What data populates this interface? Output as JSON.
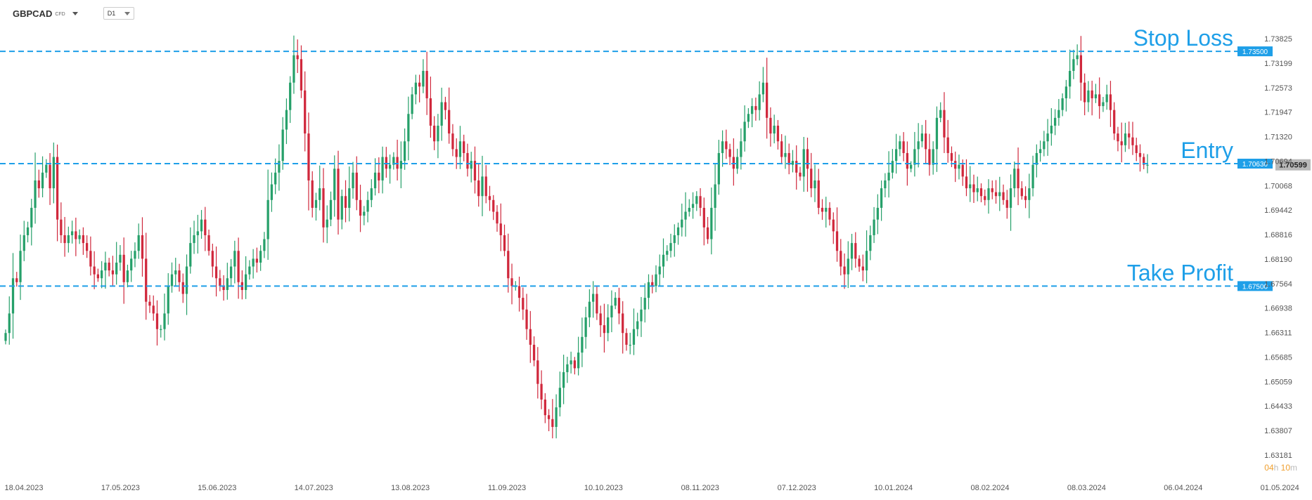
{
  "toolbar": {
    "symbol": "GBPCAD",
    "instrument_type": "CFD",
    "timeframe": "D1"
  },
  "countdown": {
    "hours": "04",
    "hours_unit": "h",
    "minutes": "10",
    "minutes_unit": "m"
  },
  "colors": {
    "bull": "#26a06a",
    "bear": "#d0283c",
    "level_line": "#1e9fe8",
    "label_bg": "#1e9fe8",
    "current_price_bg": "#b9b9b9",
    "countdown": "#f0a030"
  },
  "chart_data": {
    "type": "candlestick",
    "symbol": "GBPCAD",
    "timeframe": "D1",
    "y_ticks": [
      "1.73825",
      "1.73199",
      "1.72573",
      "1.71947",
      "1.71320",
      "1.70694",
      "1.70068",
      "1.69442",
      "1.68816",
      "1.68190",
      "1.67564",
      "1.66938",
      "1.66311",
      "1.65685",
      "1.65059",
      "1.64433",
      "1.63807",
      "1.63181"
    ],
    "ylim": [
      1.63181,
      1.73825
    ],
    "x_ticks": [
      "18.04.2023",
      "17.05.2023",
      "15.06.2023",
      "14.07.2023",
      "13.08.2023",
      "11.09.2023",
      "10.10.2023",
      "08.11.2023",
      "07.12.2023",
      "10.01.2024",
      "08.02.2024",
      "08.03.2024",
      "06.04.2024",
      "01.05.2024"
    ],
    "grid": false,
    "levels": [
      {
        "name": "Stop Loss",
        "price": 1.735,
        "label": "1.73500"
      },
      {
        "name": "Entry",
        "price": 1.7063,
        "label": "1.70630"
      },
      {
        "name": "Take Profit",
        "price": 1.675,
        "label": "1.67500"
      }
    ],
    "current_price": {
      "price": 1.70599,
      "label": "1.70599"
    },
    "series_close": [
      1.663,
      1.668,
      1.677,
      1.676,
      1.684,
      1.688,
      1.69,
      1.695,
      1.702,
      1.7,
      1.704,
      1.706,
      1.7,
      1.708,
      1.692,
      1.688,
      1.686,
      1.688,
      1.689,
      1.687,
      1.688,
      1.686,
      1.684,
      1.68,
      1.678,
      1.677,
      1.679,
      1.681,
      1.679,
      1.678,
      1.681,
      1.683,
      1.676,
      1.679,
      1.682,
      1.684,
      1.688,
      1.682,
      1.671,
      1.67,
      1.668,
      1.664,
      1.664,
      1.668,
      1.675,
      1.678,
      1.679,
      1.676,
      1.673,
      1.68,
      1.686,
      1.688,
      1.689,
      1.692,
      1.688,
      1.684,
      1.68,
      1.677,
      1.675,
      1.674,
      1.677,
      1.68,
      1.684,
      1.676,
      1.674,
      1.678,
      1.68,
      1.682,
      1.681,
      1.684,
      1.687,
      1.697,
      1.701,
      1.704,
      1.707,
      1.715,
      1.72,
      1.727,
      1.734,
      1.733,
      1.725,
      1.714,
      1.702,
      1.695,
      1.697,
      1.7,
      1.69,
      1.692,
      1.697,
      1.705,
      1.692,
      1.698,
      1.695,
      1.7,
      1.704,
      1.697,
      1.693,
      1.694,
      1.697,
      1.7,
      1.704,
      1.702,
      1.708,
      1.705,
      1.706,
      1.708,
      1.705,
      1.707,
      1.712,
      1.719,
      1.724,
      1.727,
      1.726,
      1.73,
      1.723,
      1.716,
      1.712,
      1.716,
      1.722,
      1.72,
      1.714,
      1.71,
      1.708,
      1.712,
      1.709,
      1.705,
      1.707,
      1.702,
      1.698,
      1.703,
      1.698,
      1.697,
      1.694,
      1.691,
      1.688,
      1.684,
      1.677,
      1.675,
      1.675,
      1.672,
      1.669,
      1.664,
      1.66,
      1.656,
      1.65,
      1.646,
      1.642,
      1.641,
      1.639,
      1.644,
      1.649,
      1.653,
      1.655,
      1.656,
      1.654,
      1.658,
      1.662,
      1.667,
      1.671,
      1.673,
      1.668,
      1.665,
      1.663,
      1.667,
      1.67,
      1.672,
      1.668,
      1.663,
      1.66,
      1.66,
      1.664,
      1.666,
      1.669,
      1.672,
      1.676,
      1.675,
      1.678,
      1.68,
      1.683,
      1.684,
      1.686,
      1.688,
      1.69,
      1.692,
      1.694,
      1.695,
      1.696,
      1.698,
      1.695,
      1.69,
      1.687,
      1.695,
      1.701,
      1.709,
      1.712,
      1.71,
      1.708,
      1.705,
      1.708,
      1.712,
      1.717,
      1.719,
      1.721,
      1.72,
      1.724,
      1.727,
      1.718,
      1.714,
      1.716,
      1.712,
      1.708,
      1.709,
      1.706,
      1.707,
      1.704,
      1.703,
      1.71,
      1.705,
      1.7,
      1.702,
      1.695,
      1.694,
      1.695,
      1.692,
      1.689,
      1.684,
      1.68,
      1.678,
      1.682,
      1.686,
      1.682,
      1.68,
      1.679,
      1.684,
      1.688,
      1.692,
      1.695,
      1.7,
      1.702,
      1.704,
      1.707,
      1.71,
      1.712,
      1.709,
      1.705,
      1.706,
      1.71,
      1.712,
      1.714,
      1.71,
      1.706,
      1.71,
      1.718,
      1.72,
      1.713,
      1.709,
      1.707,
      1.705,
      1.706,
      1.703,
      1.7,
      1.701,
      1.699,
      1.7,
      1.698,
      1.697,
      1.7,
      1.699,
      1.698,
      1.699,
      1.697,
      1.695,
      1.7,
      1.705,
      1.7,
      1.698,
      1.697,
      1.7,
      1.706,
      1.709,
      1.71,
      1.712,
      1.714,
      1.716,
      1.718,
      1.72,
      1.723,
      1.726,
      1.73,
      1.733,
      1.734,
      1.727,
      1.722,
      1.725,
      1.723,
      1.724,
      1.721,
      1.722,
      1.724,
      1.72,
      1.714,
      1.712,
      1.711,
      1.714,
      1.713,
      1.711,
      1.709,
      1.708,
      1.706,
      1.706
    ]
  }
}
